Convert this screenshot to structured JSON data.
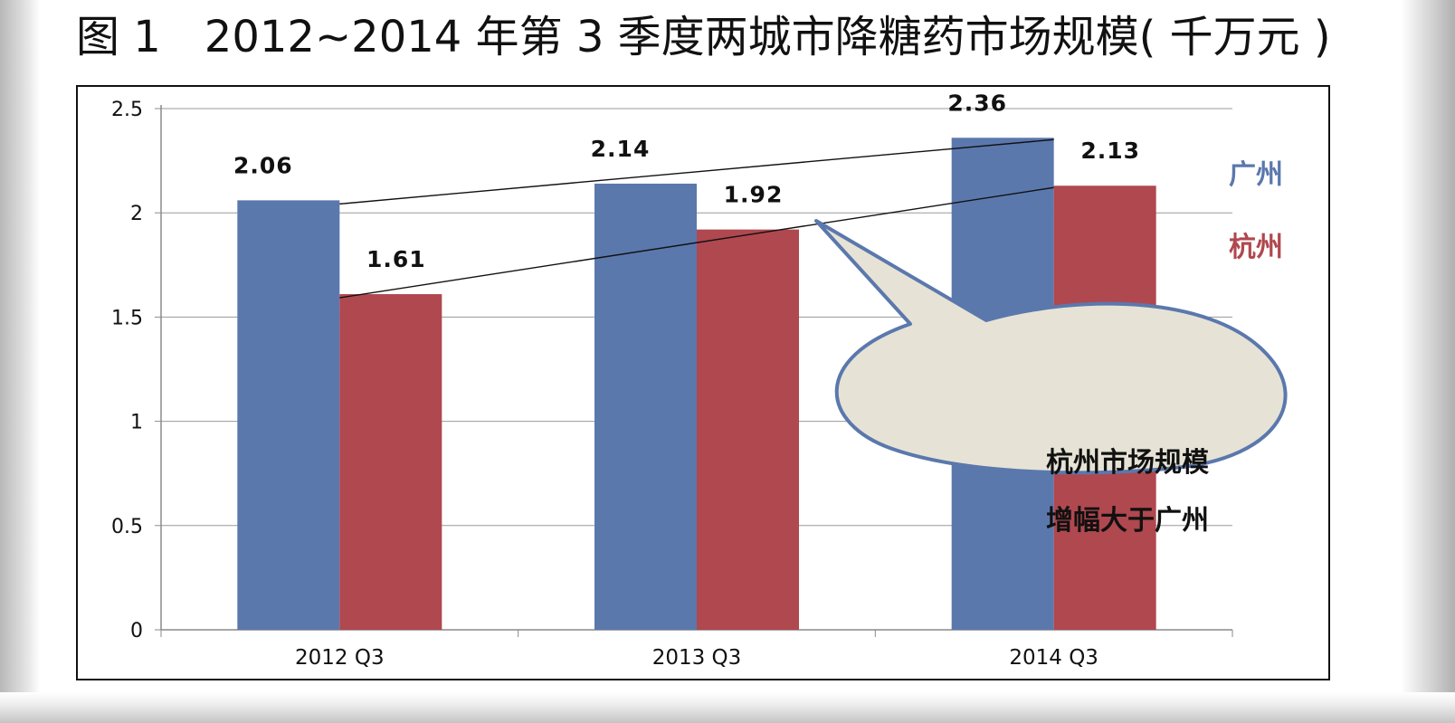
{
  "figure": {
    "title": "图 1　2012~2014 年第 3 季度两城市降糖药市场规模( 千万元 )"
  },
  "callout": {
    "line1": "杭州市场规模",
    "line2": "增幅大于广州"
  },
  "colors": {
    "guangzhou": "#5b78ad",
    "hangzhou": "#b0484f",
    "callout_fill": "#e6e3d6",
    "callout_stroke": "#5b78ad"
  },
  "chart_data": {
    "type": "bar",
    "categories": [
      "2012 Q3",
      "2013 Q3",
      "2014 Q3"
    ],
    "series": [
      {
        "name": "广州",
        "values": [
          2.06,
          2.14,
          2.36
        ]
      },
      {
        "name": "杭州",
        "values": [
          1.61,
          1.92,
          2.13
        ]
      }
    ],
    "data_labels": [
      [
        "2.06",
        "2.14",
        "2.36"
      ],
      [
        "1.61",
        "1.92",
        "2.13"
      ]
    ],
    "y_ticks": [
      "0",
      "0.5",
      "1",
      "1.5",
      "2",
      "2.5"
    ],
    "ylim": [
      0,
      2.5
    ],
    "grid": true,
    "legend_position": "right",
    "trend_lines": true
  }
}
